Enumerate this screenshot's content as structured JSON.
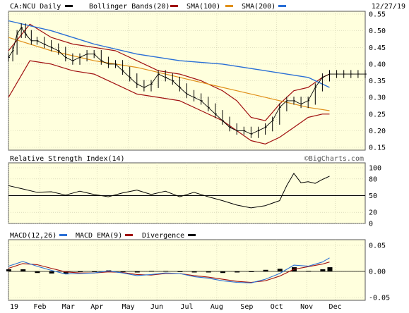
{
  "header": {
    "ticker": "CA:NCU Daily",
    "date": "12/27/19",
    "watermark": "©BigCharts.com"
  },
  "colors": {
    "bg": "#ffffdd",
    "price": "#000000",
    "bollinger": "#a01010",
    "sma100": "#e0901a",
    "sma200": "#2a6fd6",
    "macd": "#2a6fd6",
    "macd_ema": "#a01010",
    "divergence": "#000000",
    "grid": "#c9c9a8"
  },
  "chart_data": [
    {
      "type": "line",
      "title": "CA:NCU Daily",
      "series": [
        {
          "name": "Bollinger Bands(20)",
          "color": "#a01010",
          "kind": "band"
        },
        {
          "name": "SMA(100)",
          "color": "#e0901a",
          "kind": "line"
        },
        {
          "name": "SMA(200)",
          "color": "#2a6fd6",
          "kind": "line"
        }
      ],
      "ylim": [
        0.15,
        0.55
      ],
      "yticks": [
        "0.55",
        "0.50",
        "0.45",
        "0.40",
        "0.35",
        "0.30",
        "0.25",
        "0.20",
        "0.15"
      ],
      "xticks": [
        "19",
        "Feb",
        "Mar",
        "Apr",
        "May",
        "Jun",
        "Jul",
        "Aug",
        "Sep",
        "Oct",
        "Nov",
        "Dec"
      ],
      "price": {
        "x": [
          0,
          3,
          6,
          9,
          12,
          16,
          20,
          25,
          30,
          35,
          40,
          45,
          50,
          55,
          60,
          65,
          70,
          75,
          80,
          85,
          90,
          95,
          100,
          105,
          110,
          115,
          120,
          125,
          130,
          135,
          140,
          145,
          150,
          155,
          160,
          165,
          170,
          175,
          180,
          185,
          190,
          195,
          200,
          205,
          210,
          215,
          220,
          225,
          230,
          235,
          240,
          245,
          250
        ],
        "y": [
          0.42,
          0.44,
          0.49,
          0.51,
          0.49,
          0.47,
          0.47,
          0.46,
          0.45,
          0.44,
          0.42,
          0.41,
          0.42,
          0.43,
          0.43,
          0.41,
          0.4,
          0.4,
          0.38,
          0.36,
          0.34,
          0.33,
          0.34,
          0.37,
          0.36,
          0.35,
          0.33,
          0.31,
          0.3,
          0.29,
          0.27,
          0.25,
          0.23,
          0.21,
          0.2,
          0.2,
          0.19,
          0.2,
          0.21,
          0.23,
          0.27,
          0.29,
          0.29,
          0.28,
          0.29,
          0.33,
          0.36,
          0.37,
          0.37,
          0.37,
          0.37,
          0.37,
          0.37
        ]
      },
      "sma100": {
        "x": [
          0,
          30,
          60,
          90,
          120,
          150,
          180,
          210,
          225
        ],
        "y": [
          0.48,
          0.44,
          0.41,
          0.39,
          0.36,
          0.33,
          0.3,
          0.27,
          0.26
        ]
      },
      "sma200": {
        "x": [
          0,
          30,
          60,
          90,
          120,
          150,
          180,
          210,
          225
        ],
        "y": [
          0.53,
          0.5,
          0.46,
          0.43,
          0.41,
          0.4,
          0.38,
          0.36,
          0.33
        ]
      },
      "bb_upper": {
        "x": [
          0,
          15,
          30,
          45,
          60,
          75,
          90,
          105,
          120,
          135,
          150,
          160,
          170,
          180,
          190,
          200,
          210,
          220,
          225
        ],
        "y": [
          0.44,
          0.52,
          0.48,
          0.46,
          0.45,
          0.44,
          0.41,
          0.38,
          0.37,
          0.35,
          0.32,
          0.29,
          0.24,
          0.23,
          0.28,
          0.32,
          0.33,
          0.36,
          0.37
        ]
      },
      "bb_lower": {
        "x": [
          0,
          15,
          30,
          45,
          60,
          75,
          90,
          105,
          120,
          135,
          150,
          160,
          170,
          180,
          190,
          200,
          210,
          220,
          225
        ],
        "y": [
          0.3,
          0.41,
          0.4,
          0.38,
          0.37,
          0.34,
          0.31,
          0.3,
          0.29,
          0.26,
          0.23,
          0.2,
          0.17,
          0.16,
          0.18,
          0.21,
          0.24,
          0.25,
          0.25
        ]
      }
    },
    {
      "type": "line",
      "title": "Relative Strength Index(14)",
      "ylim": [
        0,
        100
      ],
      "yticks": [
        "100",
        "80",
        "50",
        "20",
        "0"
      ],
      "reference_line": 50,
      "series": [
        {
          "name": "Relative Strength Index(14)",
          "x": [
            0,
            10,
            20,
            30,
            40,
            50,
            60,
            70,
            80,
            90,
            100,
            110,
            120,
            130,
            140,
            150,
            160,
            170,
            180,
            190,
            195,
            200,
            205,
            210,
            215,
            220,
            225
          ],
          "y": [
            68,
            62,
            56,
            57,
            51,
            58,
            52,
            48,
            55,
            60,
            52,
            58,
            48,
            56,
            48,
            41,
            33,
            28,
            32,
            41,
            68,
            90,
            73,
            75,
            72,
            79,
            85
          ]
        }
      ]
    },
    {
      "type": "line",
      "title": "MACD(12,26)",
      "ylim": [
        -0.05,
        0.05
      ],
      "yticks": [
        "0.05",
        "0.00",
        "-0.05"
      ],
      "series": [
        {
          "name": "MACD(12,26)",
          "x": [
            0,
            10,
            20,
            30,
            40,
            50,
            60,
            70,
            80,
            90,
            100,
            110,
            120,
            130,
            140,
            150,
            160,
            170,
            180,
            190,
            200,
            210,
            220,
            225
          ],
          "y": [
            0.01,
            0.019,
            0.01,
            0.002,
            -0.005,
            -0.004,
            -0.003,
            0.001,
            -0.003,
            -0.008,
            -0.006,
            -0.003,
            -0.004,
            -0.01,
            -0.013,
            -0.018,
            -0.021,
            -0.022,
            -0.015,
            -0.004,
            0.012,
            0.01,
            0.018,
            0.026
          ]
        },
        {
          "name": "MACD EMA(9)",
          "x": [
            0,
            10,
            20,
            30,
            40,
            50,
            60,
            70,
            80,
            90,
            100,
            110,
            120,
            130,
            140,
            150,
            160,
            170,
            180,
            190,
            200,
            210,
            220,
            225
          ],
          "y": [
            0.006,
            0.015,
            0.013,
            0.006,
            -0.001,
            -0.003,
            -0.003,
            -0.001,
            -0.002,
            -0.006,
            -0.007,
            -0.004,
            -0.004,
            -0.008,
            -0.011,
            -0.015,
            -0.019,
            -0.021,
            -0.018,
            -0.009,
            0.004,
            0.009,
            0.014,
            0.018
          ]
        },
        {
          "name": "Divergence",
          "x": [
            0,
            10,
            20,
            30,
            40,
            50,
            60,
            70,
            80,
            90,
            100,
            110,
            120,
            130,
            140,
            150,
            160,
            170,
            180,
            190,
            200,
            210,
            220,
            225
          ],
          "y": [
            0.004,
            0.004,
            -0.003,
            -0.004,
            -0.004,
            -0.001,
            0.0,
            0.002,
            -0.001,
            -0.002,
            0.001,
            0.001,
            0.0,
            -0.002,
            -0.002,
            -0.003,
            -0.002,
            -0.001,
            0.003,
            0.005,
            0.008,
            0.001,
            0.004,
            0.008
          ]
        }
      ]
    }
  ]
}
